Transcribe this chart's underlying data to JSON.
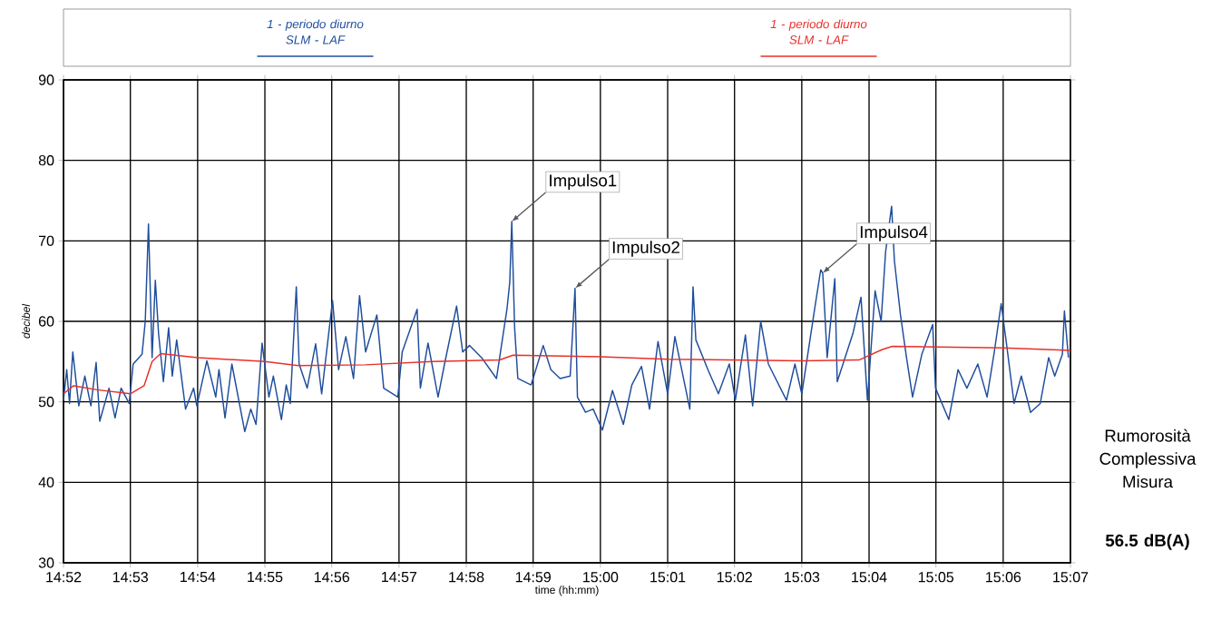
{
  "chart_data": {
    "type": "line",
    "xlabel": "time (hh:mm)",
    "ylabel": "decibel",
    "xlim": [
      14.8667,
      15.1167
    ],
    "ylim": [
      30,
      90
    ],
    "xticks": [
      {
        "value": 14.8667,
        "label": "14:52"
      },
      {
        "value": 14.8833,
        "label": "14:53"
      },
      {
        "value": 14.9,
        "label": "14:54"
      },
      {
        "value": 14.9167,
        "label": "14:55"
      },
      {
        "value": 14.9333,
        "label": "14:56"
      },
      {
        "value": 14.95,
        "label": "14:57"
      },
      {
        "value": 14.9667,
        "label": "14:58"
      },
      {
        "value": 14.9833,
        "label": "14:59"
      },
      {
        "value": 15.0,
        "label": "15:00"
      },
      {
        "value": 15.0167,
        "label": "15:01"
      },
      {
        "value": 15.0333,
        "label": "15:02"
      },
      {
        "value": 15.05,
        "label": "15:03"
      },
      {
        "value": 15.0667,
        "label": "15:04"
      },
      {
        "value": 15.0833,
        "label": "15:05"
      },
      {
        "value": 15.1,
        "label": "15:06"
      },
      {
        "value": 15.1167,
        "label": "15:07"
      }
    ],
    "yticks": [
      30,
      40,
      50,
      60,
      70,
      80,
      90
    ],
    "grid": true,
    "legend": "top",
    "series": [
      {
        "name": "1 - periodo diurno SLM - LAF",
        "color": "#1f4e9c",
        "x": [
          14.8667,
          14.8675,
          14.8682,
          14.869,
          14.8705,
          14.872,
          14.8735,
          14.8748,
          14.8757,
          14.878,
          14.8795,
          14.881,
          14.883,
          14.884,
          14.8862,
          14.887,
          14.8878,
          14.8887,
          14.8895,
          14.8903,
          14.8915,
          14.8928,
          14.8937,
          14.8948,
          14.897,
          14.899,
          14.8998,
          14.9023,
          14.9045,
          14.9053,
          14.9068,
          14.9085,
          14.9117,
          14.9132,
          14.9145,
          14.916,
          14.9177,
          14.9188,
          14.9208,
          14.922,
          14.923,
          14.9245,
          14.9252,
          14.9272,
          14.9293,
          14.9308,
          14.9335,
          14.935,
          14.9368,
          14.9387,
          14.9402,
          14.9417,
          14.9445,
          14.9462,
          14.9497,
          14.9508,
          14.9545,
          14.9553,
          14.9572,
          14.9597,
          14.9613,
          14.9643,
          14.9658,
          14.9675,
          14.9705,
          14.9742,
          14.9768,
          14.9775,
          14.978,
          14.9787,
          14.9795,
          14.9828,
          14.9858,
          14.9877,
          14.99,
          14.9925,
          14.9937,
          14.9943,
          14.9963,
          14.9982,
          15.0005,
          15.003,
          15.0057,
          15.0078,
          15.0102,
          15.0122,
          15.0143,
          15.0167,
          15.0185,
          15.0222,
          15.023,
          15.0237,
          15.0267,
          15.0293,
          15.032,
          15.0335,
          15.036,
          15.0378,
          15.0398,
          15.0417,
          15.0462,
          15.0483,
          15.05,
          15.0533,
          15.0547,
          15.0552,
          15.0563,
          15.0582,
          15.0588,
          15.0627,
          15.0647,
          15.0663,
          15.0682,
          15.0697,
          15.0708,
          15.0723,
          15.073,
          15.0745,
          15.076,
          15.0775,
          15.0798,
          15.0825,
          15.0832,
          15.0865,
          15.0888,
          15.091,
          15.0937,
          15.096,
          15.0978,
          15.0995,
          15.1008,
          15.1027,
          15.1045,
          15.1068,
          15.1092,
          15.1113,
          15.1128,
          15.1147,
          15.1152,
          15.1162
        ],
        "values": [
          50.2,
          54,
          49.8,
          56.2,
          49.5,
          53.2,
          49.5,
          54.9,
          47.6,
          51.7,
          48,
          51.7,
          49.8,
          54.7,
          55.9,
          60,
          72.1,
          55.5,
          65.1,
          58.5,
          52.5,
          59.2,
          53.2,
          57.7,
          49.1,
          51.7,
          49.5,
          55.1,
          50.6,
          54,
          48,
          54.7,
          46.3,
          49.1,
          47.2,
          57.3,
          50.6,
          53.2,
          47.8,
          52.1,
          49.8,
          64.3,
          54.7,
          51.7,
          57.2,
          51,
          62.6,
          54,
          58.1,
          52.9,
          63.2,
          56.2,
          60.8,
          51.7,
          50.6,
          56.2,
          61.5,
          51.7,
          57.3,
          50.6,
          54.7,
          61.9,
          56.2,
          57,
          55.5,
          52.9,
          61.5,
          64.9,
          72.4,
          59.2,
          52.9,
          52.1,
          57,
          54,
          52.9,
          53.2,
          64.1,
          50.6,
          48.7,
          49.1,
          46.5,
          51.4,
          47.2,
          52.1,
          54.4,
          49.1,
          57.5,
          51,
          58.1,
          49.1,
          64.3,
          57.7,
          54,
          51,
          54.7,
          50.2,
          58.3,
          49.5,
          60,
          54.7,
          50.2,
          54.7,
          51,
          61.9,
          66.4,
          66,
          55.5,
          65.3,
          52.5,
          58.5,
          63,
          50.2,
          63.8,
          60,
          68.6,
          74.3,
          67.5,
          60.8,
          55.5,
          50.6,
          55.9,
          59.6,
          51.7,
          47.8,
          54,
          51.7,
          54.7,
          50.6,
          56.2,
          62.2,
          57.3,
          49.8,
          53.2,
          48.7,
          49.8,
          55.5,
          53.2,
          55.9,
          61.3,
          55.5
        ]
      },
      {
        "name": "1 - periodo diurno SLM - LAF",
        "color": "#e8302a",
        "x": [
          14.8667,
          14.8692,
          14.875,
          14.8833,
          14.8867,
          14.8887,
          14.8908,
          14.9,
          14.9167,
          14.925,
          14.9417,
          14.9583,
          14.975,
          14.9783,
          15.0,
          15.0167,
          15.05,
          15.0642,
          15.07,
          15.0725,
          15.1,
          15.1167
        ],
        "values": [
          51,
          52,
          51.5,
          51,
          52,
          55,
          56,
          55.5,
          55,
          54.5,
          54.6,
          55,
          55.2,
          55.8,
          55.6,
          55.3,
          55.1,
          55.2,
          56.5,
          56.9,
          56.7,
          56.4
        ]
      }
    ],
    "annotations": [
      {
        "text": "Impulso1",
        "x": 14.978,
        "y": 72.4
      },
      {
        "text": "Impulso2",
        "x": 14.9937,
        "y": 64.1
      },
      {
        "text": "Impulso4",
        "x": 15.0552,
        "y": 66
      },
      "Rumorosità Complessiva Misura",
      "56.5 dB(A)"
    ]
  }
}
